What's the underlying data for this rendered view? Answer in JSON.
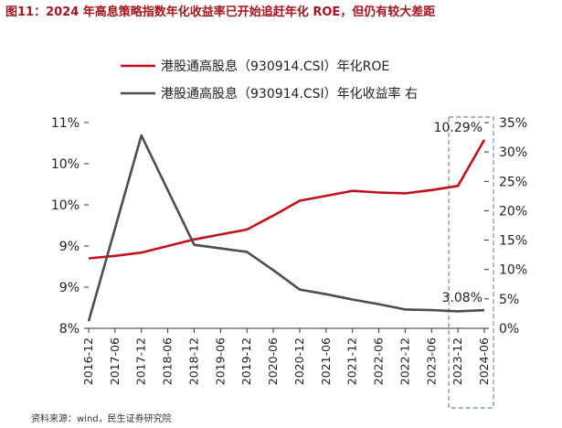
{
  "title": "图11：2024 年高息策略指数年化收益率已开始追赶年化 ROE，但仍有较大差距",
  "source": "资料来源：wind，民生证券研究院",
  "chart_data": {
    "type": "line",
    "categories": [
      "2016-12",
      "2017-06",
      "2017-12",
      "2018-06",
      "2018-12",
      "2019-06",
      "2019-12",
      "2020-06",
      "2020-12",
      "2021-06",
      "2021-12",
      "2022-06",
      "2022-12",
      "2023-06",
      "2023-12",
      "2024-06"
    ],
    "series": [
      {
        "name": "港股通高股息（930914.CSI）年化ROE",
        "axis": "left",
        "color": "#c0121b",
        "values": [
          8.85,
          8.88,
          8.92,
          9.0,
          9.08,
          9.14,
          9.2,
          9.37,
          9.55,
          9.61,
          9.67,
          9.65,
          9.64,
          9.68,
          9.73,
          10.29
        ]
      },
      {
        "name": "港股通高股息（930914.CSI）年化收益率 右",
        "axis": "right",
        "color": "#4d4d4d",
        "values": [
          1.2,
          17.0,
          32.8,
          23.5,
          14.2,
          13.6,
          13.0,
          9.9,
          6.6,
          5.8,
          4.9,
          4.1,
          3.2,
          3.1,
          2.9,
          3.08
        ]
      }
    ],
    "left_axis": {
      "ylim": [
        8.0,
        10.5
      ],
      "ticks": [
        8.0,
        8.5,
        9.0,
        9.5,
        10.0,
        10.5
      ],
      "tick_labels": [
        "8%",
        "9%",
        "9%",
        "10%",
        "10%",
        "11%"
      ]
    },
    "right_axis": {
      "ylim": [
        0,
        35
      ],
      "ticks": [
        0,
        5,
        10,
        15,
        20,
        25,
        30,
        35
      ],
      "tick_labels": [
        "0%",
        "5%",
        "10%",
        "15%",
        "20%",
        "25%",
        "30%",
        "35%"
      ]
    },
    "annotations": [
      {
        "text": "10.29%",
        "series": 0,
        "index": 15
      },
      {
        "text": "3.08%",
        "series": 1,
        "index": 15
      }
    ],
    "highlight_box": {
      "from_index": 14,
      "to_index": 15,
      "style": "dashed"
    },
    "legend_position": "top-center",
    "grid": false
  }
}
